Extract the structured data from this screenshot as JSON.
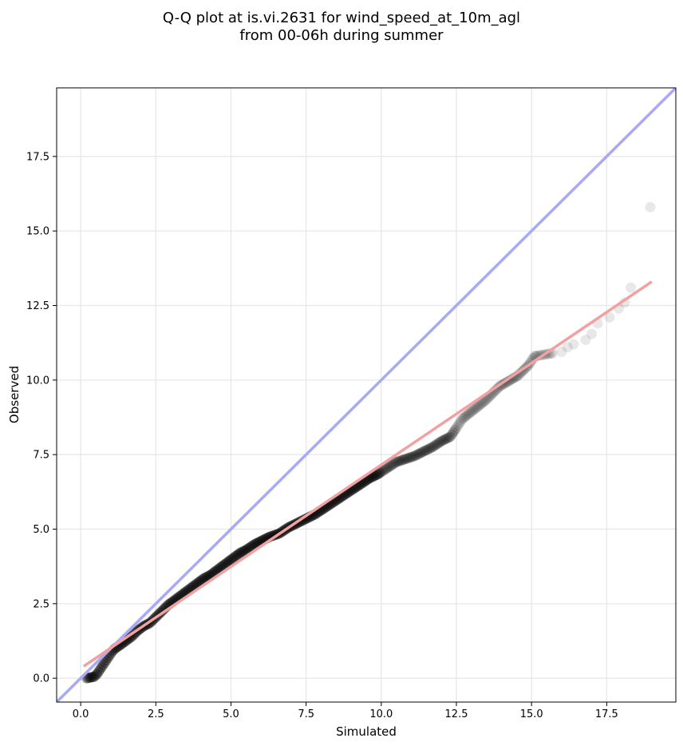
{
  "chart_data": {
    "type": "scatter",
    "title_line1": "Q-Q plot at is.vi.2631 for wind_speed_at_10m_agl",
    "title_line2": "from 00-06h during summer",
    "xlabel": "Simulated",
    "ylabel": "Observed",
    "xlim": [
      -0.8,
      19.8
    ],
    "ylim": [
      -0.8,
      19.8
    ],
    "xticks": [
      0.0,
      2.5,
      5.0,
      7.5,
      10.0,
      12.5,
      15.0,
      17.5
    ],
    "yticks": [
      0.0,
      2.5,
      5.0,
      7.5,
      10.0,
      12.5,
      15.0,
      17.5
    ],
    "xtick_labels": [
      "0.0",
      "2.5",
      "5.0",
      "7.5",
      "10.0",
      "12.5",
      "15.0",
      "17.5"
    ],
    "ytick_labels": [
      "0.0",
      "2.5",
      "5.0",
      "7.5",
      "10.0",
      "12.5",
      "15.0",
      "17.5"
    ],
    "grid": true,
    "colors": {
      "points": "#000000",
      "identity_line": "#a9a9f5",
      "fit_line": "#f2a0a0",
      "fit_line_dense": "#d0302a"
    },
    "reference_lines": [
      {
        "kind": "identity",
        "x": [
          -0.8,
          19.8
        ],
        "y": [
          -0.8,
          19.8
        ]
      },
      {
        "kind": "linear_fit",
        "x": [
          0.1,
          19.0
        ],
        "y": [
          0.4,
          13.3
        ]
      }
    ],
    "quantiles": [
      [
        0.2,
        0.0
      ],
      [
        0.3,
        0.02
      ],
      [
        0.45,
        0.05
      ],
      [
        0.55,
        0.15
      ],
      [
        0.65,
        0.3
      ],
      [
        0.75,
        0.45
      ],
      [
        0.85,
        0.6
      ],
      [
        0.95,
        0.75
      ],
      [
        1.05,
        0.9
      ],
      [
        1.15,
        1.0
      ],
      [
        1.3,
        1.1
      ],
      [
        1.5,
        1.25
      ],
      [
        1.7,
        1.4
      ],
      [
        1.9,
        1.6
      ],
      [
        2.1,
        1.75
      ],
      [
        2.3,
        1.85
      ],
      [
        2.5,
        2.05
      ],
      [
        2.7,
        2.25
      ],
      [
        2.9,
        2.45
      ],
      [
        3.1,
        2.6
      ],
      [
        3.3,
        2.75
      ],
      [
        3.5,
        2.9
      ],
      [
        3.7,
        3.05
      ],
      [
        3.9,
        3.2
      ],
      [
        4.1,
        3.35
      ],
      [
        4.3,
        3.45
      ],
      [
        4.5,
        3.6
      ],
      [
        4.7,
        3.75
      ],
      [
        4.9,
        3.9
      ],
      [
        5.1,
        4.05
      ],
      [
        5.3,
        4.2
      ],
      [
        5.5,
        4.3
      ],
      [
        5.8,
        4.5
      ],
      [
        6.0,
        4.6
      ],
      [
        6.3,
        4.75
      ],
      [
        6.6,
        4.85
      ],
      [
        6.9,
        5.05
      ],
      [
        7.2,
        5.2
      ],
      [
        7.5,
        5.35
      ],
      [
        7.8,
        5.5
      ],
      [
        8.1,
        5.7
      ],
      [
        8.4,
        5.9
      ],
      [
        8.7,
        6.1
      ],
      [
        9.0,
        6.3
      ],
      [
        9.3,
        6.5
      ],
      [
        9.6,
        6.7
      ],
      [
        9.9,
        6.85
      ],
      [
        10.2,
        7.05
      ],
      [
        10.5,
        7.25
      ],
      [
        10.8,
        7.35
      ],
      [
        11.1,
        7.45
      ],
      [
        11.4,
        7.6
      ],
      [
        11.7,
        7.75
      ],
      [
        12.0,
        7.95
      ],
      [
        12.3,
        8.1
      ],
      [
        12.5,
        8.4
      ],
      [
        12.7,
        8.7
      ],
      [
        12.95,
        8.9
      ],
      [
        13.2,
        9.1
      ],
      [
        13.45,
        9.3
      ],
      [
        13.7,
        9.55
      ],
      [
        13.95,
        9.8
      ],
      [
        14.3,
        10.0
      ],
      [
        14.55,
        10.15
      ],
      [
        14.75,
        10.35
      ],
      [
        14.9,
        10.5
      ],
      [
        15.0,
        10.65
      ],
      [
        15.1,
        10.8
      ],
      [
        15.7,
        10.9
      ],
      [
        16.0,
        10.95
      ],
      [
        16.2,
        11.1
      ],
      [
        16.4,
        11.2
      ],
      [
        16.8,
        11.35
      ],
      [
        17.0,
        11.55
      ],
      [
        17.2,
        11.9
      ],
      [
        17.6,
        12.1
      ],
      [
        17.9,
        12.4
      ],
      [
        18.1,
        12.6
      ],
      [
        18.3,
        13.1
      ],
      [
        18.95,
        15.8
      ]
    ]
  }
}
